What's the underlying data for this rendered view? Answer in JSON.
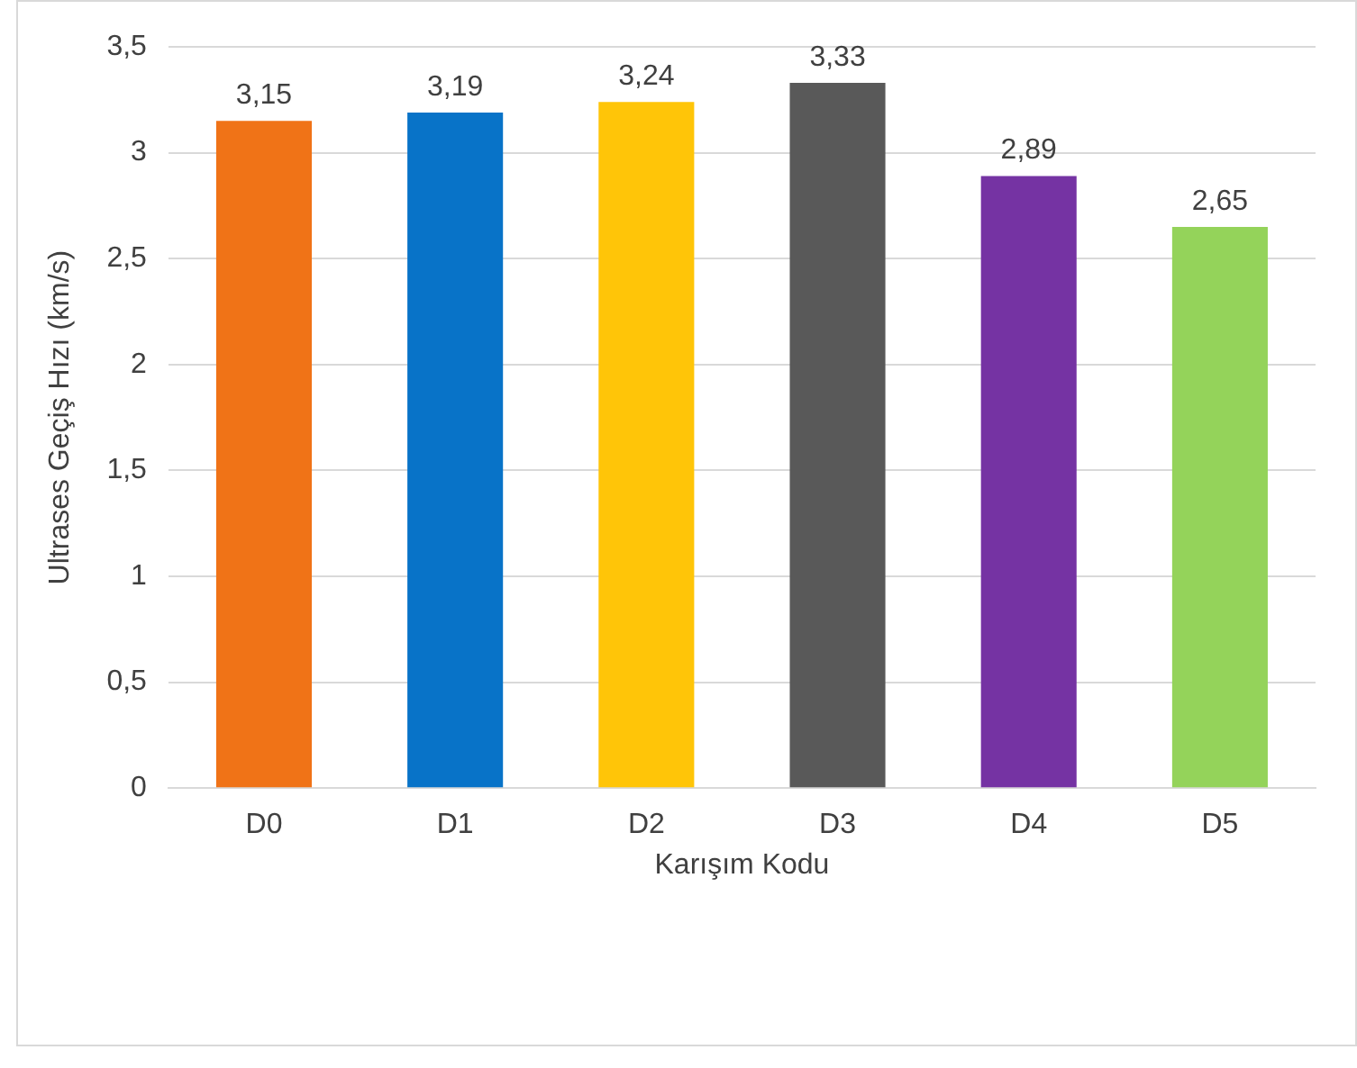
{
  "chart_data": {
    "type": "bar",
    "xlabel": "Karışım Kodu",
    "ylabel": "Ultrases Geçiş Hızı (km/s)",
    "categories": [
      "D0",
      "D1",
      "D2",
      "D3",
      "D4",
      "D5"
    ],
    "values": [
      3.15,
      3.19,
      3.24,
      3.33,
      2.89,
      2.65
    ],
    "colors": [
      "#f07317",
      "#0873c8",
      "#ffc508",
      "#595959",
      "#7533a3",
      "#94d35a"
    ],
    "value_labels": [
      "3,15",
      "3,19",
      "3,24",
      "3,33",
      "2,89",
      "2,65"
    ],
    "ylim": [
      0,
      3.5
    ],
    "yticks": [
      0,
      {
        "value": 0.5,
        "label": "0,5"
      },
      1,
      {
        "value": 1.5,
        "label": "1,5"
      },
      2,
      {
        "value": 2.5,
        "label": "2,5"
      },
      3,
      {
        "value": 3.5,
        "label": "3,5"
      }
    ],
    "grid": "y",
    "legend": false
  }
}
